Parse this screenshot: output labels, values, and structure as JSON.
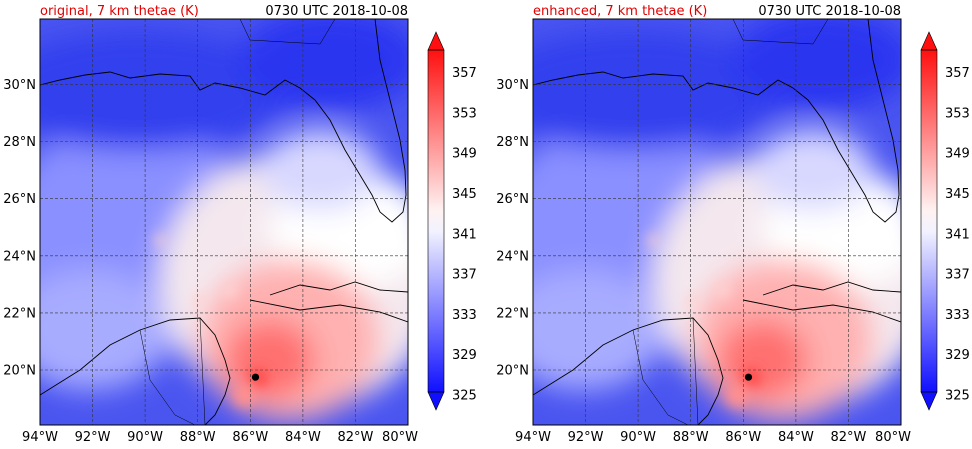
{
  "chart_data": [
    {
      "type": "heatmap",
      "title_left": "original, 7 km thetae (K)",
      "title_right": "0730 UTC 2018-10-08",
      "x_tick_labels": [
        "94°W",
        "92°W",
        "90°W",
        "88°W",
        "86°W",
        "84°W",
        "82°W",
        "80°W"
      ],
      "x_tick_values": [
        -94,
        -92,
        -90,
        -88,
        -86,
        -84,
        -82,
        -80
      ],
      "y_tick_labels": [
        "20°N",
        "22°N",
        "24°N",
        "26°N",
        "28°N",
        "30°N"
      ],
      "y_tick_values": [
        20,
        22,
        24,
        26,
        28,
        30
      ],
      "xlim": [
        -94,
        -80
      ],
      "ylim": [
        18.3,
        32
      ],
      "grid": true,
      "colorbar": {
        "levels": [
          325,
          327,
          329,
          331,
          333,
          335,
          337,
          339,
          341,
          343,
          345,
          347,
          349,
          351,
          353,
          355,
          357,
          359
        ],
        "tick_labels": [
          "325",
          "329",
          "333",
          "337",
          "341",
          "345",
          "349",
          "353",
          "357"
        ],
        "extend": "both",
        "colormap": "bwr"
      },
      "marker": {
        "lon": -85.8,
        "lat": 19.8,
        "color": "#000000"
      }
    },
    {
      "type": "heatmap",
      "title_left": "enhanced, 7 km thetae (K)",
      "title_right": "0730 UTC 2018-10-08",
      "x_tick_labels": [
        "94°W",
        "92°W",
        "90°W",
        "88°W",
        "86°W",
        "84°W",
        "82°W",
        "80°W"
      ],
      "x_tick_values": [
        -94,
        -92,
        -90,
        -88,
        -86,
        -84,
        -82,
        -80
      ],
      "y_tick_labels": [
        "20°N",
        "22°N",
        "24°N",
        "26°N",
        "28°N",
        "30°N"
      ],
      "y_tick_values": [
        20,
        22,
        24,
        26,
        28,
        30
      ],
      "xlim": [
        -94,
        -80
      ],
      "ylim": [
        18.3,
        32
      ],
      "grid": true,
      "colorbar": {
        "levels": [
          325,
          327,
          329,
          331,
          333,
          335,
          337,
          339,
          341,
          343,
          345,
          347,
          349,
          351,
          353,
          355,
          357,
          359
        ],
        "tick_labels": [
          "325",
          "329",
          "333",
          "337",
          "341",
          "345",
          "349",
          "353",
          "357"
        ],
        "extend": "both",
        "colormap": "bwr"
      },
      "marker": {
        "lon": -85.8,
        "lat": 19.8,
        "color": "#000000"
      }
    }
  ]
}
